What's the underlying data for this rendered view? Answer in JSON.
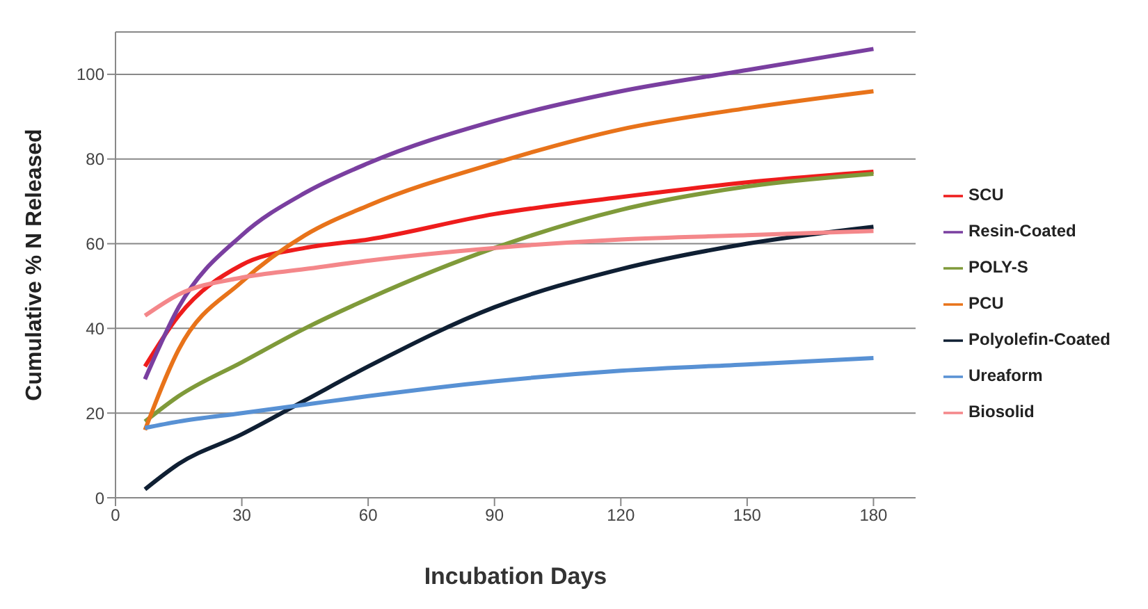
{
  "chart_data": {
    "type": "line",
    "xlabel": "Incubation Days",
    "ylabel": "Cumulative % N Released",
    "x": [
      7,
      15,
      30,
      45,
      60,
      90,
      120,
      150,
      180
    ],
    "series": [
      {
        "name": "SCU",
        "color": "#ee1c1c",
        "values": [
          31,
          43,
          55,
          59,
          61,
          67,
          71,
          74.5,
          77
        ]
      },
      {
        "name": "Resin-Coated",
        "color": "#7a3fa0",
        "values": [
          28,
          45,
          62,
          72,
          79,
          89,
          96,
          101,
          106
        ]
      },
      {
        "name": "POLY-S",
        "color": "#7f9a3a",
        "values": [
          18,
          24,
          32,
          40,
          47,
          59,
          68,
          73.5,
          76.5
        ]
      },
      {
        "name": "PCU",
        "color": "#e8731a",
        "values": [
          16,
          35,
          51,
          62,
          69,
          79,
          87,
          92,
          96
        ]
      },
      {
        "name": "Polyolefin-Coated",
        "color": "#0f1f33",
        "values": [
          2,
          8,
          15,
          23,
          31,
          45,
          54,
          60,
          64
        ]
      },
      {
        "name": "Ureaform",
        "color": "#5891d4",
        "values": [
          16.5,
          18,
          20,
          22,
          24,
          27.5,
          30,
          31.5,
          33
        ]
      },
      {
        "name": "Biosolid",
        "color": "#f4878a",
        "values": [
          43,
          48,
          52,
          54,
          56,
          59,
          61,
          62,
          63
        ]
      }
    ],
    "xlim": [
      0,
      190
    ],
    "xticks": [
      0,
      30,
      60,
      90,
      120,
      150,
      180
    ],
    "ylim": [
      0,
      110
    ],
    "yticks": [
      0,
      20,
      40,
      60,
      80,
      100
    ],
    "grid": "y",
    "legend": "right",
    "marker": "none",
    "line_style": "solid"
  }
}
